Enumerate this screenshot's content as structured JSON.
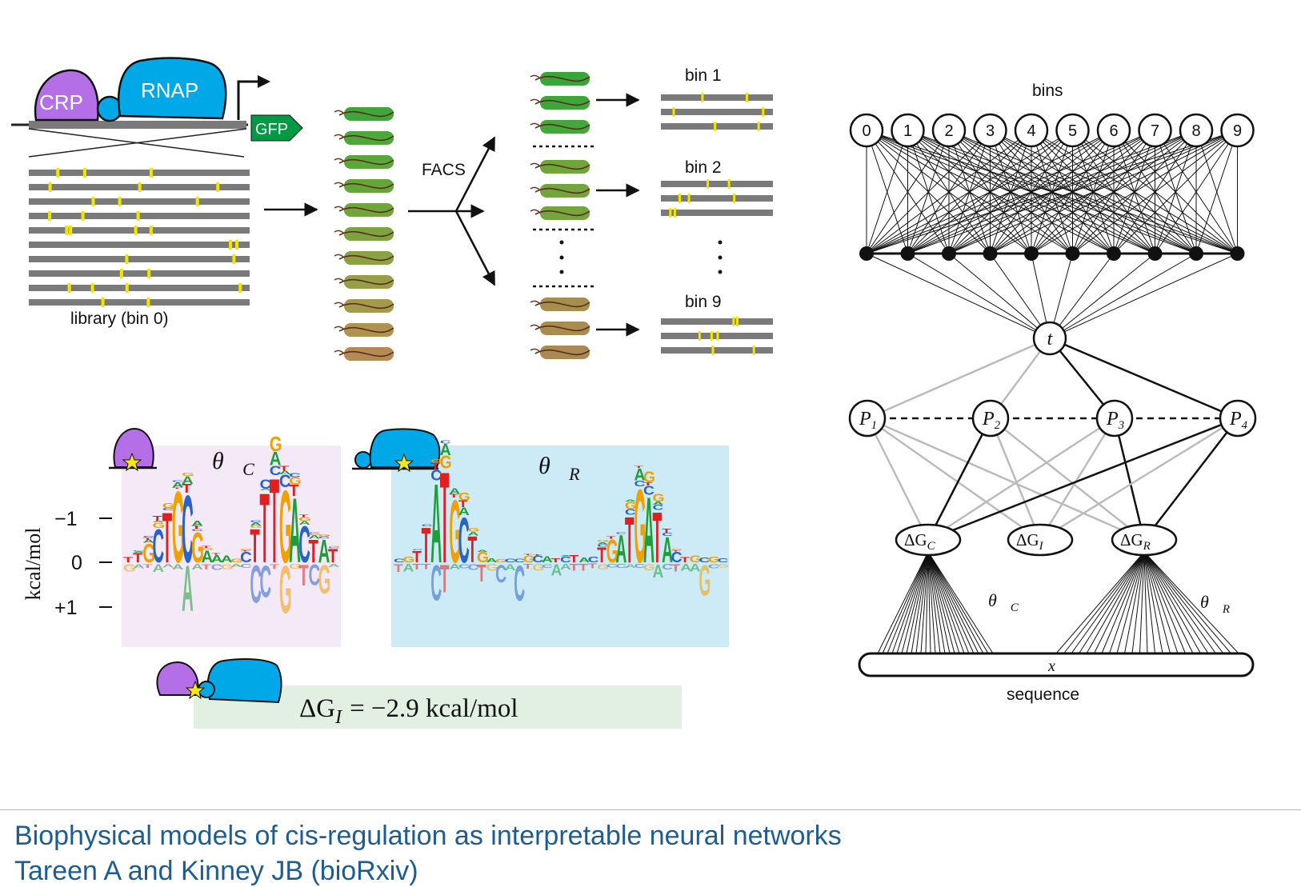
{
  "experiment": {
    "crp_label": "CRP",
    "rnap_label": "RNAP",
    "gfp_label": "GFP",
    "library_label": "library (bin 0)",
    "facs_label": "FACS",
    "bins": [
      "bin 1",
      "bin 2",
      "bin 9"
    ],
    "colors": {
      "crp": "#b46ee6",
      "rnap": "#00a8e8",
      "gfp": "#009a44",
      "mutation": "#f2e600",
      "dna": "#7a7a7a"
    }
  },
  "logos": {
    "ylabel": "kcal/mol",
    "yticks": [
      "−1",
      "0",
      "+1"
    ],
    "crp_title": "θ⃗",
    "crp_sub": "C",
    "rnap_title": "θ⃗",
    "rnap_sub": "R",
    "crp_panel_color": "#f3e9f7",
    "rnap_panel_color": "#cdeaf7",
    "interaction_text": "ΔG",
    "interaction_sub": "I",
    "interaction_value": "= −2.9 kcal/mol",
    "interaction_panel_color": "#e2f0e2"
  },
  "network": {
    "bins_label": "bins",
    "bin_nodes": [
      "0",
      "1",
      "2",
      "3",
      "4",
      "5",
      "6",
      "7",
      "8",
      "9"
    ],
    "t_label": "t",
    "p_nodes": [
      {
        "main": "P",
        "sub": "1"
      },
      {
        "main": "P",
        "sub": "2"
      },
      {
        "main": "P",
        "sub": "3"
      },
      {
        "main": "P",
        "sub": "4"
      }
    ],
    "dg_nodes": [
      {
        "main": "ΔG",
        "sub": "C"
      },
      {
        "main": "ΔG",
        "sub": "I"
      },
      {
        "main": "ΔG",
        "sub": "R"
      }
    ],
    "theta_c": {
      "main": "θ⃗",
      "sub": "C"
    },
    "theta_r": {
      "main": "θ⃗",
      "sub": "R"
    },
    "x_label": "x⃗",
    "sequence_label": "sequence"
  },
  "footer": {
    "title": "Biophysical models of cis-regulation as interpretable neural networks",
    "subtitle": "Tareen A and Kinney JB (bioRxiv)"
  }
}
